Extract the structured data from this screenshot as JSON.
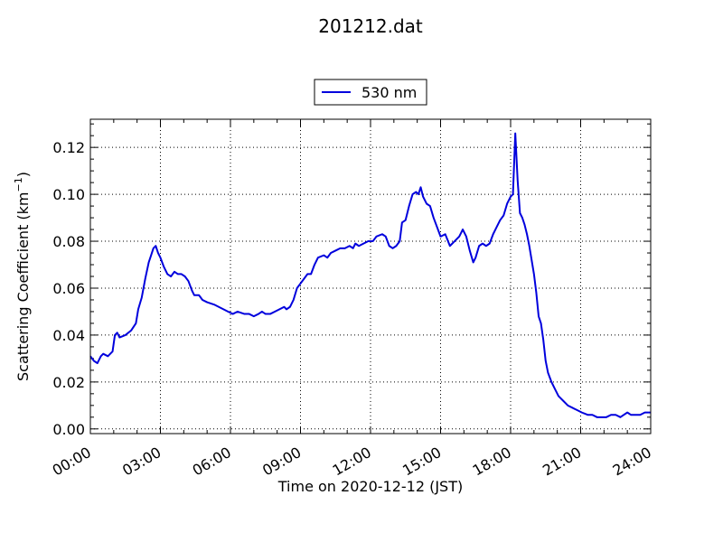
{
  "chart_data": {
    "type": "line",
    "title": "201212.dat",
    "xlabel": "Time on 2020-12-12 (JST)",
    "ylabel": "Scattering Coefficient (km",
    "ylabel_sup": "−1",
    "ylabel_suffix": ")",
    "xlim": [
      0,
      24
    ],
    "ylim": [
      -0.002,
      0.132
    ],
    "x_ticks": [
      {
        "value": 0,
        "label": "00:00"
      },
      {
        "value": 3,
        "label": "03:00"
      },
      {
        "value": 6,
        "label": "06:00"
      },
      {
        "value": 9,
        "label": "09:00"
      },
      {
        "value": 12,
        "label": "12:00"
      },
      {
        "value": 15,
        "label": "15:00"
      },
      {
        "value": 18,
        "label": "18:00"
      },
      {
        "value": 21,
        "label": "21:00"
      },
      {
        "value": 24,
        "label": "24:00"
      }
    ],
    "y_ticks": [
      {
        "value": 0.0,
        "label": "0.00"
      },
      {
        "value": 0.02,
        "label": "0.02"
      },
      {
        "value": 0.04,
        "label": "0.04"
      },
      {
        "value": 0.06,
        "label": "0.06"
      },
      {
        "value": 0.08,
        "label": "0.08"
      },
      {
        "value": 0.1,
        "label": "0.10"
      },
      {
        "value": 0.12,
        "label": "0.12"
      }
    ],
    "grid": true,
    "legend_position": "top-center, above plot",
    "series": [
      {
        "name": "530 nm",
        "color": "#0000dd",
        "points": [
          [
            0.0,
            0.031
          ],
          [
            0.15,
            0.029
          ],
          [
            0.3,
            0.028
          ],
          [
            0.45,
            0.031
          ],
          [
            0.55,
            0.032
          ],
          [
            0.75,
            0.031
          ],
          [
            0.95,
            0.033
          ],
          [
            1.05,
            0.04
          ],
          [
            1.15,
            0.041
          ],
          [
            1.25,
            0.039
          ],
          [
            1.5,
            0.04
          ],
          [
            1.75,
            0.042
          ],
          [
            1.95,
            0.045
          ],
          [
            2.05,
            0.051
          ],
          [
            2.2,
            0.056
          ],
          [
            2.35,
            0.064
          ],
          [
            2.5,
            0.071
          ],
          [
            2.6,
            0.074
          ],
          [
            2.7,
            0.077
          ],
          [
            2.8,
            0.078
          ],
          [
            2.9,
            0.075
          ],
          [
            3.0,
            0.073
          ],
          [
            3.15,
            0.069
          ],
          [
            3.3,
            0.066
          ],
          [
            3.45,
            0.065
          ],
          [
            3.6,
            0.067
          ],
          [
            3.75,
            0.066
          ],
          [
            3.9,
            0.066
          ],
          [
            4.05,
            0.065
          ],
          [
            4.2,
            0.063
          ],
          [
            4.35,
            0.059
          ],
          [
            4.45,
            0.057
          ],
          [
            4.65,
            0.057
          ],
          [
            4.8,
            0.055
          ],
          [
            5.0,
            0.054
          ],
          [
            5.3,
            0.053
          ],
          [
            5.5,
            0.052
          ],
          [
            5.7,
            0.051
          ],
          [
            5.9,
            0.05
          ],
          [
            6.1,
            0.049
          ],
          [
            6.3,
            0.05
          ],
          [
            6.6,
            0.049
          ],
          [
            6.8,
            0.049
          ],
          [
            7.0,
            0.048
          ],
          [
            7.2,
            0.049
          ],
          [
            7.35,
            0.05
          ],
          [
            7.5,
            0.049
          ],
          [
            7.7,
            0.049
          ],
          [
            7.9,
            0.05
          ],
          [
            8.1,
            0.051
          ],
          [
            8.3,
            0.052
          ],
          [
            8.4,
            0.051
          ],
          [
            8.55,
            0.052
          ],
          [
            8.7,
            0.055
          ],
          [
            8.85,
            0.06
          ],
          [
            9.0,
            0.062
          ],
          [
            9.15,
            0.064
          ],
          [
            9.3,
            0.066
          ],
          [
            9.45,
            0.066
          ],
          [
            9.6,
            0.07
          ],
          [
            9.75,
            0.073
          ],
          [
            10.0,
            0.074
          ],
          [
            10.15,
            0.073
          ],
          [
            10.3,
            0.075
          ],
          [
            10.5,
            0.076
          ],
          [
            10.7,
            0.077
          ],
          [
            10.9,
            0.077
          ],
          [
            11.1,
            0.078
          ],
          [
            11.25,
            0.077
          ],
          [
            11.35,
            0.079
          ],
          [
            11.5,
            0.078
          ],
          [
            11.7,
            0.079
          ],
          [
            11.9,
            0.08
          ],
          [
            12.1,
            0.08
          ],
          [
            12.25,
            0.082
          ],
          [
            12.5,
            0.083
          ],
          [
            12.65,
            0.082
          ],
          [
            12.8,
            0.078
          ],
          [
            12.95,
            0.077
          ],
          [
            13.1,
            0.078
          ],
          [
            13.25,
            0.08
          ],
          [
            13.35,
            0.088
          ],
          [
            13.5,
            0.089
          ],
          [
            13.65,
            0.095
          ],
          [
            13.8,
            0.1
          ],
          [
            13.95,
            0.101
          ],
          [
            14.05,
            0.1
          ],
          [
            14.15,
            0.103
          ],
          [
            14.25,
            0.099
          ],
          [
            14.4,
            0.096
          ],
          [
            14.55,
            0.095
          ],
          [
            14.7,
            0.09
          ],
          [
            14.85,
            0.086
          ],
          [
            15.0,
            0.082
          ],
          [
            15.2,
            0.083
          ],
          [
            15.4,
            0.078
          ],
          [
            15.6,
            0.08
          ],
          [
            15.8,
            0.082
          ],
          [
            15.95,
            0.085
          ],
          [
            16.1,
            0.082
          ],
          [
            16.25,
            0.076
          ],
          [
            16.4,
            0.071
          ],
          [
            16.5,
            0.073
          ],
          [
            16.65,
            0.078
          ],
          [
            16.8,
            0.079
          ],
          [
            16.95,
            0.078
          ],
          [
            17.1,
            0.079
          ],
          [
            17.25,
            0.083
          ],
          [
            17.4,
            0.086
          ],
          [
            17.55,
            0.089
          ],
          [
            17.7,
            0.091
          ],
          [
            17.85,
            0.096
          ],
          [
            18.0,
            0.099
          ],
          [
            18.1,
            0.1
          ],
          [
            18.2,
            0.126
          ],
          [
            18.3,
            0.106
          ],
          [
            18.4,
            0.092
          ],
          [
            18.5,
            0.09
          ],
          [
            18.6,
            0.087
          ],
          [
            18.7,
            0.083
          ],
          [
            18.8,
            0.078
          ],
          [
            18.9,
            0.072
          ],
          [
            19.0,
            0.066
          ],
          [
            19.1,
            0.058
          ],
          [
            19.2,
            0.048
          ],
          [
            19.3,
            0.045
          ],
          [
            19.4,
            0.038
          ],
          [
            19.5,
            0.029
          ],
          [
            19.6,
            0.024
          ],
          [
            19.75,
            0.02
          ],
          [
            19.9,
            0.017
          ],
          [
            20.05,
            0.014
          ],
          [
            20.25,
            0.012
          ],
          [
            20.45,
            0.01
          ],
          [
            20.65,
            0.009
          ],
          [
            20.85,
            0.008
          ],
          [
            21.05,
            0.007
          ],
          [
            21.3,
            0.006
          ],
          [
            21.5,
            0.006
          ],
          [
            21.7,
            0.005
          ],
          [
            21.9,
            0.005
          ],
          [
            22.1,
            0.005
          ],
          [
            22.3,
            0.006
          ],
          [
            22.5,
            0.006
          ],
          [
            22.7,
            0.005
          ],
          [
            22.85,
            0.006
          ],
          [
            23.0,
            0.007
          ],
          [
            23.15,
            0.006
          ],
          [
            23.35,
            0.006
          ],
          [
            23.55,
            0.006
          ],
          [
            23.75,
            0.007
          ],
          [
            24.0,
            0.007
          ]
        ]
      }
    ]
  }
}
